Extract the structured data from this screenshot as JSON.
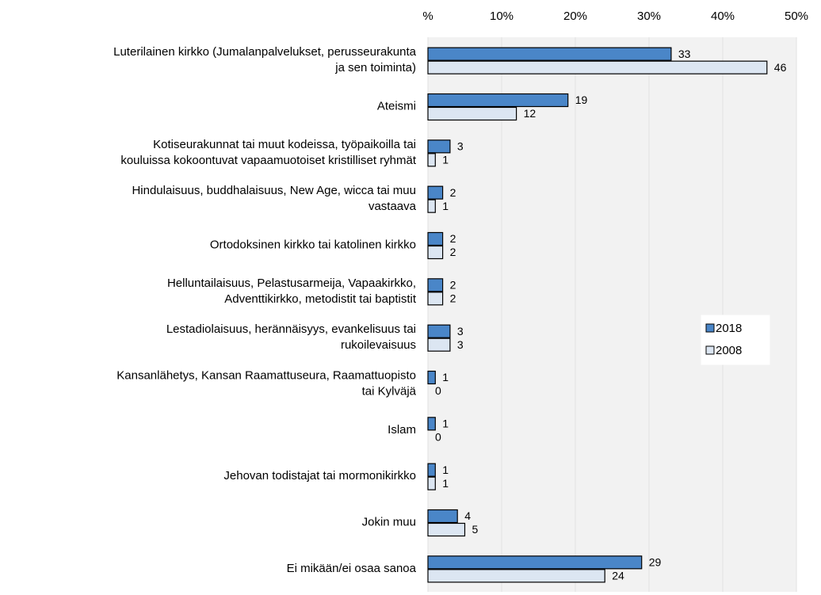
{
  "chart_data": {
    "type": "bar",
    "orientation": "horizontal",
    "categories": [
      [
        "Luterilainen kirkko (Jumalanpalvelukset, perusseurakunta",
        "ja sen toiminta)"
      ],
      [
        "Ateismi"
      ],
      [
        "Kotiseurakunnat tai muut kodeissa, työpaikoilla tai",
        "kouluissa kokoontuvat vapaamuotoiset kristilliset ryhmät"
      ],
      [
        "Hindulaisuus, buddhalaisuus, New Age, wicca tai muu",
        "vastaava"
      ],
      [
        "Ortodoksinen kirkko tai katolinen kirkko"
      ],
      [
        "Helluntailaisuus, Pelastusarmeija, Vapaakirkko,",
        "Adventtikirkko, metodistit tai baptistit"
      ],
      [
        "Lestadiolaisuus, herännäisyys, evankelisuus tai",
        "rukoilevaisuus"
      ],
      [
        "Kansanlähetys, Kansan Raamattuseura, Raamattuopisto",
        "tai Kylväjä"
      ],
      [
        "Islam"
      ],
      [
        "Jehovan todistajat tai mormonikirkko"
      ],
      [
        "Jokin muu"
      ],
      [
        "Ei mikään/ei osaa sanoa"
      ]
    ],
    "series": [
      {
        "name": "2018",
        "color": "#4a86c8",
        "values": [
          33,
          19,
          3,
          2,
          2,
          2,
          3,
          1,
          1,
          1,
          4,
          29
        ]
      },
      {
        "name": "2008",
        "color": "#dce6f2",
        "values": [
          46,
          12,
          1,
          1,
          2,
          2,
          3,
          0,
          0,
          1,
          5,
          24
        ]
      }
    ],
    "xlim": [
      0,
      50
    ],
    "xticks": [
      {
        "value": 0,
        "label": "%"
      },
      {
        "value": 10,
        "label": "10%"
      },
      {
        "value": 20,
        "label": "20%"
      },
      {
        "value": 30,
        "label": "30%"
      },
      {
        "value": 40,
        "label": "40%"
      },
      {
        "value": 50,
        "label": "50%"
      }
    ],
    "grid": true,
    "legend": "right"
  }
}
